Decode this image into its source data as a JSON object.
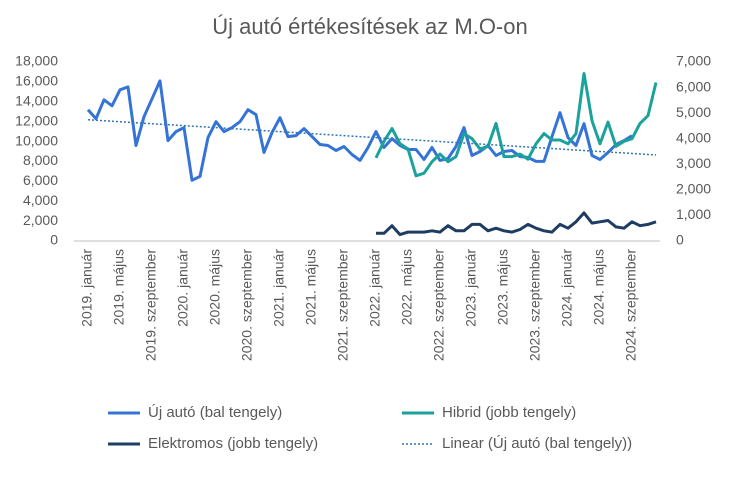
{
  "chart_data": {
    "type": "line",
    "title": "Új autó értékesítések az M.O-on",
    "categories": [
      "2019. január",
      null,
      null,
      null,
      "2019. május",
      null,
      null,
      null,
      "2019. szeptember",
      null,
      null,
      null,
      "2020. január",
      null,
      null,
      null,
      "2020. május",
      null,
      null,
      null,
      "2020. szeptember",
      null,
      null,
      null,
      "2021. január",
      null,
      null,
      null,
      "2021. május",
      null,
      null,
      null,
      "2021. szeptember",
      null,
      null,
      null,
      "2022. január",
      null,
      null,
      null,
      "2022. május",
      null,
      null,
      null,
      "2022. szeptember",
      null,
      null,
      null,
      "2023. január",
      null,
      null,
      null,
      "2023. május",
      null,
      null,
      null,
      "2023. szeptember",
      null,
      null,
      null,
      "2024. január",
      null,
      null,
      null,
      "2024. május",
      null,
      null,
      null,
      "2024. szeptember",
      null,
      null,
      null
    ],
    "series": [
      {
        "name": "Új autó (bal tengely)",
        "color": "#3574d6",
        "axis": "y",
        "values": [
          13200,
          12300,
          14200,
          13600,
          15200,
          15500,
          9600,
          12500,
          14300,
          16100,
          10100,
          11000,
          11400,
          6100,
          6500,
          10400,
          12000,
          11000,
          11400,
          12000,
          13200,
          12700,
          8900,
          10900,
          12400,
          10500,
          10600,
          11300,
          10500,
          9700,
          9600,
          9100,
          9500,
          8700,
          8100,
          9400,
          11000,
          9400,
          10300,
          9600,
          9200,
          9200,
          8200,
          9400,
          8100,
          8300,
          9500,
          11400,
          8600,
          9000,
          9600,
          8600,
          9000,
          9100,
          8500,
          8400,
          8000,
          8000,
          10500,
          12900,
          10400,
          9600,
          11800,
          8600,
          8200,
          8900,
          9700,
          10100,
          10600,
          null,
          null,
          null
        ]
      },
      {
        "name": "Hibrid (jobb tengely)",
        "color": "#1ba39b",
        "axis": "y2",
        "values": [
          null,
          null,
          null,
          null,
          null,
          null,
          null,
          null,
          null,
          null,
          null,
          null,
          null,
          null,
          null,
          null,
          null,
          null,
          null,
          null,
          null,
          null,
          null,
          null,
          null,
          null,
          null,
          null,
          null,
          null,
          null,
          null,
          null,
          null,
          null,
          null,
          3250,
          3900,
          4400,
          3800,
          3600,
          2550,
          2650,
          3100,
          3400,
          3100,
          3300,
          4200,
          4000,
          3600,
          3700,
          4600,
          3300,
          3300,
          3400,
          3200,
          3800,
          4200,
          3950,
          3950,
          3800,
          4200,
          6550,
          4700,
          3800,
          4650,
          3700,
          3900,
          4000,
          4600,
          4900,
          6200
        ]
      },
      {
        "name": "Elektromos (jobb tengely)",
        "color": "#1f3d63",
        "axis": "y2",
        "values": [
          null,
          null,
          null,
          null,
          null,
          null,
          null,
          null,
          null,
          null,
          null,
          null,
          null,
          null,
          null,
          null,
          null,
          null,
          null,
          null,
          null,
          null,
          null,
          null,
          null,
          null,
          null,
          null,
          null,
          null,
          null,
          null,
          null,
          null,
          null,
          null,
          300,
          300,
          600,
          250,
          350,
          350,
          350,
          400,
          350,
          600,
          400,
          400,
          650,
          650,
          400,
          500,
          400,
          350,
          450,
          650,
          500,
          400,
          350,
          650,
          500,
          750,
          1100,
          700,
          750,
          800,
          550,
          500,
          750,
          600,
          650,
          750
        ]
      },
      {
        "name": "Linear (Új autó (bal tengely))",
        "color": "#2e75b6",
        "axis": "y",
        "dash": "dotted",
        "values": [
          12200,
          12150,
          12100,
          12050,
          12000,
          11950,
          11900,
          11850,
          11800,
          11750,
          11700,
          11650,
          11600,
          11550,
          11500,
          11450,
          11400,
          11350,
          11300,
          11250,
          11200,
          11150,
          11100,
          11050,
          11000,
          10950,
          10900,
          10850,
          10800,
          10750,
          10700,
          10650,
          10600,
          10550,
          10500,
          10450,
          10400,
          10350,
          10300,
          10250,
          10200,
          10150,
          10100,
          10050,
          10000,
          9950,
          9900,
          9850,
          9800,
          9750,
          9700,
          9650,
          9600,
          9550,
          9500,
          9450,
          9400,
          9350,
          9300,
          9250,
          9200,
          9150,
          9100,
          9050,
          9000,
          8950,
          8900,
          8850,
          8800,
          8750,
          8700,
          8650
        ]
      }
    ],
    "ylim": [
      0,
      18000
    ],
    "yticks": [
      0,
      {
        "value": 2000,
        "label": "2,000"
      },
      {
        "value": 4000,
        "label": "4,000"
      },
      {
        "value": 6000,
        "label": "6,000"
      },
      {
        "value": 8000,
        "label": "8,000"
      },
      {
        "value": 10000,
        "label": "10,000"
      },
      {
        "value": 12000,
        "label": "12,000"
      },
      {
        "value": 14000,
        "label": "14,000"
      },
      {
        "value": 16000,
        "label": "16,000"
      },
      {
        "value": 18000,
        "label": "18,000"
      }
    ],
    "y2lim": [
      0,
      7000
    ],
    "y2ticks": [
      0,
      {
        "value": 1000,
        "label": "1,000"
      },
      {
        "value": 2000,
        "label": "2,000"
      },
      {
        "value": 3000,
        "label": "3,000"
      },
      {
        "value": 4000,
        "label": "4,000"
      },
      {
        "value": 5000,
        "label": "5,000"
      },
      {
        "value": 6000,
        "label": "6,000"
      },
      {
        "value": 7000,
        "label": "7,000"
      }
    ],
    "grid": false,
    "legend": "bottom"
  }
}
